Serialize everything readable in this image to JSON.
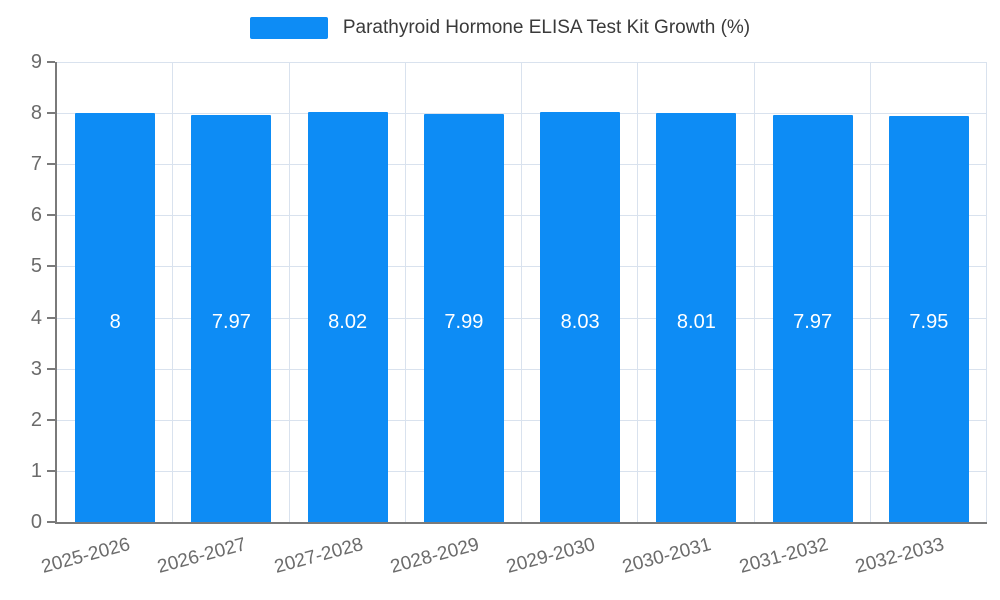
{
  "chart_data": {
    "type": "bar",
    "title": "Parathyroid Hormone ELISA Test Kit Growth (%)",
    "categories": [
      "2025-2026",
      "2026-2027",
      "2027-2028",
      "2028-2029",
      "2029-2030",
      "2030-2031",
      "2031-2032",
      "2032-2033"
    ],
    "values": [
      8,
      7.97,
      8.02,
      7.99,
      8.03,
      8.01,
      7.97,
      7.95
    ],
    "value_labels": [
      "8",
      "7.97",
      "8.02",
      "7.99",
      "8.03",
      "8.01",
      "7.97",
      "7.95"
    ],
    "xlabel": "",
    "ylabel": "",
    "ylim": [
      0,
      9
    ],
    "ytick_step": 1,
    "ytick_labels": [
      "0",
      "1",
      "2",
      "3",
      "4",
      "5",
      "6",
      "7",
      "8",
      "9"
    ],
    "grid": "on",
    "legend_position": "top-center",
    "colors": {
      "bar": "#0d8cf5",
      "grid": "#d9e2ee",
      "axis": "#7a7a7a",
      "tick_text": "#6b6b6b",
      "title_text": "#3a3a3a",
      "value_label_text": "#ffffff"
    }
  }
}
